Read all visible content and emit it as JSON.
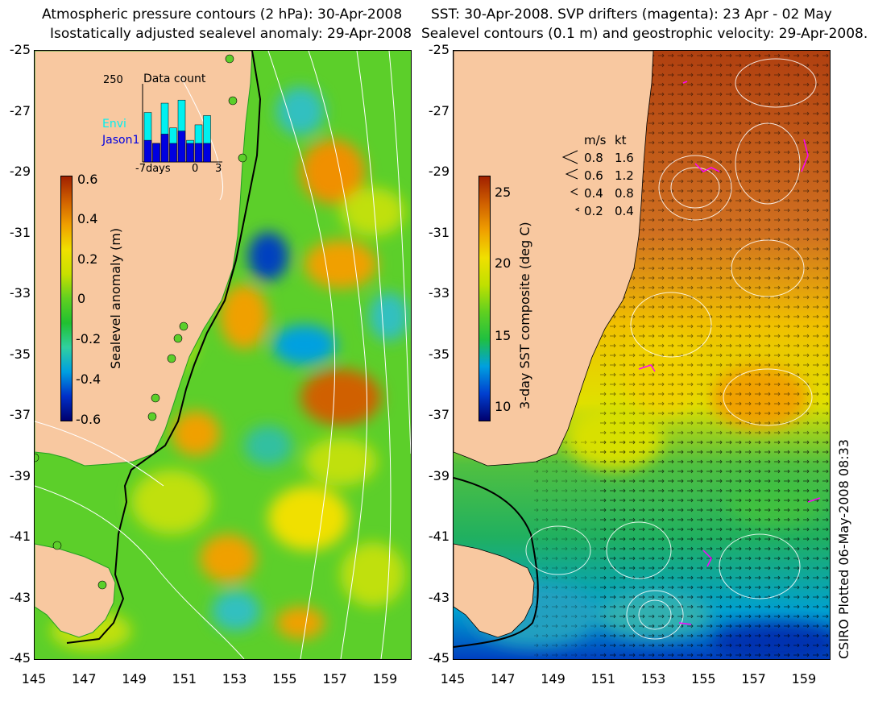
{
  "left_panel": {
    "title_line1": "Atmospheric pressure contours (2 hPa): 30-Apr-2008",
    "title_line2": "Isostatically adjusted sealevel anomaly: 29-Apr-2008",
    "colorbar": {
      "label": "Sealevel anomaly (m)",
      "ticks": [
        "0.6",
        "0.4",
        "0.2",
        "0",
        "-0.2",
        "-0.4",
        "-0.6"
      ],
      "range": [
        -0.6,
        0.6
      ],
      "colors": [
        "#00006e",
        "#0030c8",
        "#00a0e0",
        "#30d0a0",
        "#20c030",
        "#60d020",
        "#c8e000",
        "#f0e000",
        "#f0a000",
        "#d06000",
        "#a02000"
      ]
    },
    "inset": {
      "title": "Data count",
      "ymax_label": "250",
      "x_labels": [
        "-7days",
        "0",
        "3"
      ],
      "series": [
        {
          "name": "Envi",
          "color": "#00f0f0"
        },
        {
          "name": "Jason1",
          "color": "#0000e0"
        }
      ],
      "envi_counts": [
        160,
        60,
        190,
        110,
        200,
        70,
        120,
        150
      ],
      "jason_counts": [
        70,
        60,
        90,
        60,
        100,
        60,
        60,
        60
      ]
    }
  },
  "right_panel": {
    "title_line1": "SST: 30-Apr-2008. SVP drifters (magenta): 23 Apr - 02 May",
    "title_line2": "Sealevel contours (0.1 m) and geostrophic velocity: 29-Apr-2008.",
    "colorbar": {
      "label": "3-day SST composite (deg C)",
      "ticks": [
        "25",
        "20",
        "15",
        "10"
      ],
      "range": [
        8,
        27
      ],
      "colors": [
        "#00006e",
        "#0040d0",
        "#00a0e0",
        "#20c040",
        "#60d020",
        "#c0e000",
        "#f0e000",
        "#f0a000",
        "#d06000",
        "#a02000"
      ]
    },
    "velocity_legend": {
      "header_ms": "m/s",
      "header_kt": "kt",
      "rows": [
        {
          "ms": "0.8",
          "kt": "1.6"
        },
        {
          "ms": "0.6",
          "kt": "1.2"
        },
        {
          "ms": "0.4",
          "kt": "0.8"
        },
        {
          "ms": "0.2",
          "kt": "0.4"
        }
      ]
    }
  },
  "axes": {
    "y_ticks": [
      "-25",
      "-27",
      "-29",
      "-31",
      "-33",
      "-35",
      "-37",
      "-39",
      "-41",
      "-43",
      "-45"
    ],
    "x_ticks": [
      "145",
      "147",
      "149",
      "151",
      "153",
      "155",
      "157",
      "159"
    ],
    "lat_range": [
      -45,
      -25
    ],
    "lon_range": [
      145,
      160
    ]
  },
  "credit": "CSIRO Plotted 06-May-2008 08:33",
  "colors": {
    "land": "#f8c8a0",
    "sea_mid": "#60d020",
    "contour": "#ffffff",
    "coast_line": "#000000",
    "drifter": "#ff00ff"
  }
}
